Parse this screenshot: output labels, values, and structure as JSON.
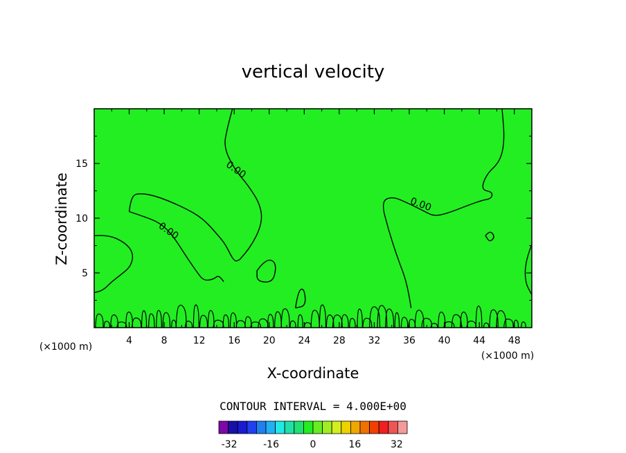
{
  "chart_data": {
    "type": "heatmap",
    "title": "vertical velocity",
    "xlabel": "X-coordinate",
    "ylabel": "Z-coordinate",
    "x_unit_note": "(×1000 m)",
    "y_unit_note": "(×1000 m)",
    "xlim": [
      0,
      50
    ],
    "ylim": [
      0,
      20
    ],
    "x_ticks": [
      4,
      8,
      12,
      16,
      20,
      24,
      28,
      32,
      36,
      40,
      44,
      48
    ],
    "y_ticks": [
      5,
      10,
      15
    ],
    "x_tick_labels": [
      "4",
      "8",
      "12",
      "16",
      "20",
      "24",
      "28",
      "32",
      "36",
      "40",
      "44",
      "48"
    ],
    "y_tick_labels": [
      "5",
      "10",
      "15"
    ],
    "field_color": "#22ee22",
    "contour_interval_text": "CONTOUR INTERVAL = 4.000E+00",
    "contour_interval": 4.0,
    "contour_labels": [
      {
        "text": "0.00",
        "x": 16.0,
        "z": 14.2,
        "angle": 35
      },
      {
        "text": "0.00",
        "x": 8.3,
        "z": 8.6,
        "angle": 35
      },
      {
        "text": "0.00",
        "x": 37.2,
        "z": 11.0,
        "angle": 20
      }
    ],
    "zero_contours": [
      [
        [
          0.0,
          8.4
        ],
        [
          1.5,
          8.5
        ],
        [
          3.5,
          7.8
        ],
        [
          4.5,
          6.8
        ],
        [
          4.2,
          5.6
        ],
        [
          3.0,
          4.8
        ],
        [
          2.0,
          4.2
        ],
        [
          1.0,
          3.4
        ],
        [
          0.0,
          3.2
        ]
      ],
      [
        [
          4.0,
          10.6
        ],
        [
          4.2,
          12.0
        ],
        [
          5.2,
          12.3
        ],
        [
          7.2,
          12.0
        ],
        [
          10.2,
          11.0
        ],
        [
          12.4,
          10.0
        ],
        [
          14.2,
          8.4
        ],
        [
          15.0,
          7.6
        ],
        [
          16.0,
          6.0
        ],
        [
          16.6,
          6.2
        ]
      ],
      [
        [
          16.6,
          6.2
        ],
        [
          17.8,
          7.2
        ],
        [
          19.2,
          9.5
        ],
        [
          19.0,
          11.2
        ],
        [
          17.6,
          13.0
        ],
        [
          16.0,
          14.5
        ],
        [
          14.8,
          16.5
        ],
        [
          15.2,
          18.2
        ],
        [
          15.8,
          20.0
        ]
      ],
      [
        [
          4.0,
          10.6
        ],
        [
          5.5,
          10.2
        ],
        [
          7.5,
          9.6
        ],
        [
          9.0,
          8.4
        ],
        [
          10.6,
          6.4
        ],
        [
          11.8,
          5.0
        ],
        [
          12.5,
          4.3
        ],
        [
          13.6,
          4.4
        ],
        [
          14.2,
          4.8
        ],
        [
          14.8,
          4.2
        ]
      ],
      [
        [
          36.2,
          1.8
        ],
        [
          35.8,
          4.0
        ],
        [
          34.6,
          6.5
        ],
        [
          33.6,
          9.0
        ],
        [
          32.8,
          11.5
        ],
        [
          34.0,
          12.0
        ],
        [
          35.8,
          11.4
        ],
        [
          37.8,
          10.6
        ],
        [
          38.8,
          10.2
        ],
        [
          40.2,
          10.4
        ],
        [
          42.8,
          11.2
        ],
        [
          44.2,
          11.6
        ],
        [
          45.4,
          11.8
        ],
        [
          45.5,
          12.4
        ],
        [
          44.2,
          12.6
        ],
        [
          44.8,
          14.0
        ],
        [
          46.4,
          15.2
        ],
        [
          46.9,
          17.2
        ],
        [
          46.6,
          20.0
        ]
      ],
      [
        [
          50.0,
          7.6
        ],
        [
          49.3,
          6.2
        ],
        [
          49.2,
          4.2
        ],
        [
          50.0,
          3.0
        ]
      ],
      [
        [
          18.6,
          5.2
        ],
        [
          19.6,
          6.3
        ],
        [
          20.8,
          6.0
        ],
        [
          20.6,
          4.5
        ],
        [
          19.8,
          4.1
        ],
        [
          18.6,
          4.3
        ],
        [
          18.6,
          5.2
        ]
      ],
      [
        [
          44.7,
          8.4
        ],
        [
          45.2,
          8.9
        ],
        [
          45.8,
          8.3
        ],
        [
          45.2,
          7.8
        ],
        [
          44.7,
          8.4
        ]
      ],
      [
        [
          23.0,
          1.8
        ],
        [
          23.3,
          3.4
        ],
        [
          24.0,
          3.6
        ],
        [
          24.2,
          2.0
        ],
        [
          23.0,
          1.8
        ]
      ]
    ],
    "colorbar": {
      "min": -36,
      "max": 36,
      "step": 4,
      "tick_values": [
        -32,
        -16,
        0,
        16,
        32
      ],
      "tick_labels": [
        "-32",
        "-16",
        "0",
        "16",
        "32"
      ],
      "colors": [
        "#7d08a8",
        "#1810a8",
        "#1a1ad0",
        "#1f3ff0",
        "#2080f0",
        "#22b0f5",
        "#22e8e8",
        "#20e0a8",
        "#20e070",
        "#22ee22",
        "#66ee22",
        "#a0ee22",
        "#d2ee22",
        "#eed200",
        "#f0a800",
        "#f07000",
        "#f04000",
        "#f02020",
        "#ee5555",
        "#f59a9a"
      ]
    }
  }
}
